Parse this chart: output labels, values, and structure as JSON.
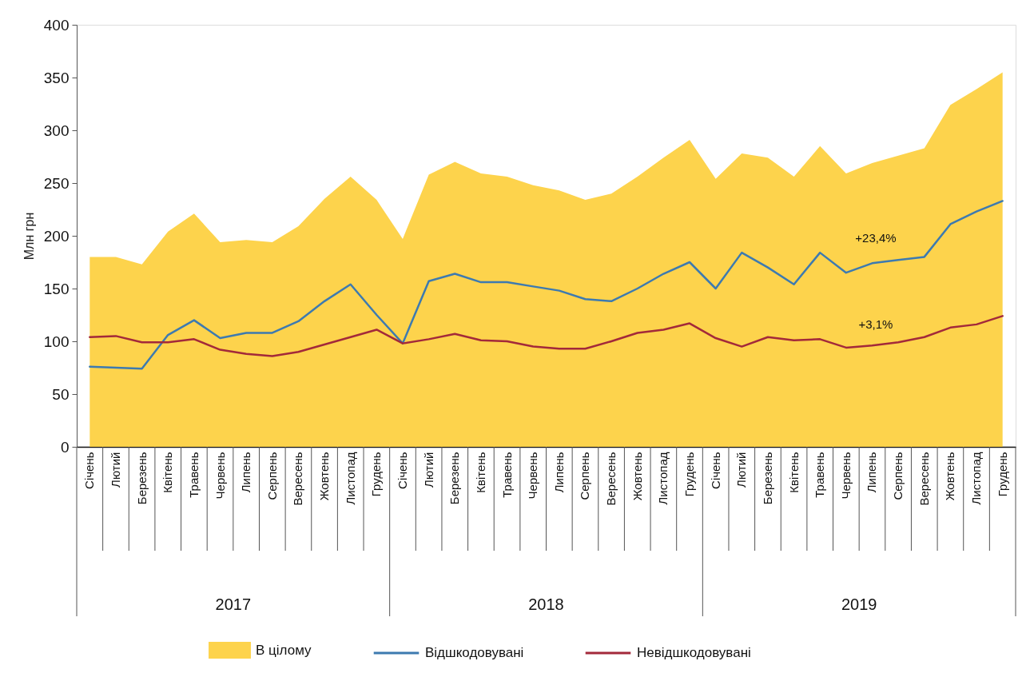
{
  "chart_data": {
    "type": "line",
    "ylabel": "Млн грн",
    "categories": [
      "Січень",
      "Лютий",
      "Березень",
      "Квітень",
      "Травень",
      "Червень",
      "Липень",
      "Серпень",
      "Вересень",
      "Жовтень",
      "Листопад",
      "Грудень",
      "Січень",
      "Лютий",
      "Березень",
      "Квітень",
      "Травень",
      "Червень",
      "Липень",
      "Серпень",
      "Вересень",
      "Жовтень",
      "Листопад",
      "Грудень",
      "Січень",
      "Лютий",
      "Березень",
      "Квітень",
      "Травень",
      "Червень",
      "Липень",
      "Серпень",
      "Вересень",
      "Жовтень",
      "Листопад",
      "Грудень"
    ],
    "series": [
      {
        "name": "В цілому",
        "type": "area",
        "color": "#fdd34c",
        "values": [
          180,
          180,
          173,
          204,
          221,
          194,
          196,
          194,
          209,
          235,
          256,
          234,
          197,
          258,
          270,
          259,
          256,
          248,
          243,
          234,
          240,
          256,
          274,
          291,
          254,
          278,
          274,
          256,
          285,
          259,
          269,
          276,
          283,
          324,
          339,
          355
        ]
      },
      {
        "name": "Відшкодовувані",
        "color": "#3d7ab0",
        "values": [
          76,
          75,
          74,
          106,
          120,
          103,
          108,
          108,
          119,
          138,
          154,
          125,
          98,
          157,
          164,
          156,
          156,
          152,
          148,
          140,
          138,
          150,
          164,
          175,
          150,
          184,
          170,
          154,
          184,
          165,
          174,
          177,
          180,
          211,
          223,
          233
        ]
      },
      {
        "name": "Невідшкодовувані",
        "color": "#a3293a",
        "values": [
          104,
          105,
          99,
          99,
          102,
          92,
          88,
          86,
          90,
          97,
          104,
          111,
          98,
          102,
          107,
          101,
          100,
          95,
          93,
          93,
          100,
          108,
          111,
          117,
          103,
          95,
          104,
          101,
          102,
          94,
          96,
          99,
          104,
          113,
          116,
          124
        ]
      }
    ],
    "ylim": [
      0,
      400
    ],
    "yticks": [
      0,
      50,
      100,
      150,
      200,
      250,
      300,
      350,
      400
    ],
    "annotations": [
      "2017",
      "2018",
      "2019",
      "+23,4%",
      "+3,1%"
    ],
    "legend": "bottom"
  }
}
